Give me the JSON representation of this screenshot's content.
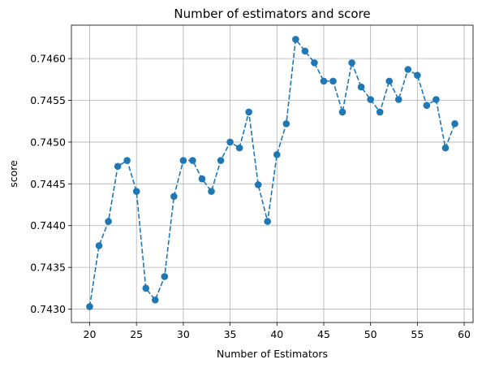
{
  "chart_data": {
    "type": "line",
    "title": "Number of estimators and score",
    "xlabel": "Number of Estimators",
    "ylabel": "score",
    "xlim": [
      18.05,
      60.95
    ],
    "ylim": [
      0.74284,
      0.7464
    ],
    "xticks": [
      20,
      25,
      30,
      35,
      40,
      45,
      50,
      55,
      60
    ],
    "xtick_labels": [
      "20",
      "25",
      "30",
      "35",
      "40",
      "45",
      "50",
      "55",
      "60"
    ],
    "yticks": [
      0.743,
      0.7435,
      0.744,
      0.7445,
      0.745,
      0.7455,
      0.746
    ],
    "ytick_labels": [
      "0.7430",
      "0.7435",
      "0.7440",
      "0.7445",
      "0.7450",
      "0.7455",
      "0.7460"
    ],
    "grid": true,
    "line_style": "dashed",
    "marker": "circle",
    "color": "#1f77b4",
    "series": [
      {
        "x": [
          20,
          21,
          22,
          23,
          24,
          25,
          26,
          27,
          28,
          29,
          30,
          31,
          32,
          33,
          34,
          35,
          36,
          37,
          38,
          39,
          40,
          41,
          42,
          43,
          44,
          45,
          46,
          47,
          48,
          49,
          50,
          51,
          52,
          53,
          54,
          55,
          56,
          57,
          58,
          59
        ],
        "values": [
          0.74303,
          0.74376,
          0.74405,
          0.74471,
          0.74478,
          0.74441,
          0.74325,
          0.74311,
          0.74339,
          0.74435,
          0.74478,
          0.74478,
          0.74456,
          0.74441,
          0.74478,
          0.745,
          0.74493,
          0.74536,
          0.74449,
          0.74405,
          0.74485,
          0.74522,
          0.74623,
          0.74609,
          0.74595,
          0.74573,
          0.74573,
          0.74536,
          0.74595,
          0.74566,
          0.74551,
          0.74536,
          0.74573,
          0.74551,
          0.74587,
          0.7458,
          0.74544,
          0.74551,
          0.74493,
          0.74522
        ]
      }
    ]
  }
}
